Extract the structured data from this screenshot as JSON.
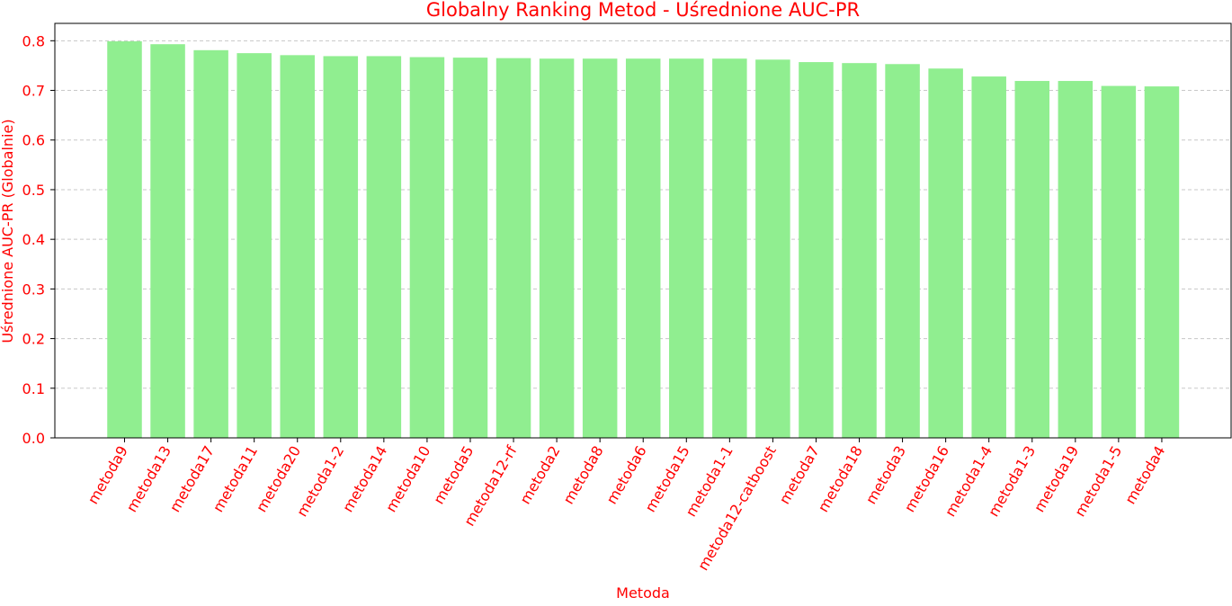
{
  "chart_data": {
    "type": "bar",
    "title": "Globalny Ranking Metod - Uśrednione AUC-PR",
    "xlabel": "Metoda",
    "ylabel": "Uśrednione AUC-PR (Globalnie)",
    "ylim": [
      0,
      0.835
    ],
    "yticks": [
      0.0,
      0.1,
      0.2,
      0.3,
      0.4,
      0.5,
      0.6,
      0.7,
      0.8
    ],
    "ytick_labels": [
      "0.0",
      "0.1",
      "0.2",
      "0.3",
      "0.4",
      "0.5",
      "0.6",
      "0.7",
      "0.8"
    ],
    "grid": "y-dashed",
    "categories": [
      "metoda9",
      "metoda13",
      "metoda17",
      "metoda11",
      "metoda20",
      "metoda1-2",
      "metoda14",
      "metoda10",
      "metoda5",
      "metoda12-rf",
      "metoda2",
      "metoda8",
      "metoda6",
      "metoda15",
      "metoda1-1",
      "metoda12-catboost",
      "metoda7",
      "metoda18",
      "metoda3",
      "metoda16",
      "metoda1-4",
      "metoda1-3",
      "metoda19",
      "metoda1-5",
      "metoda4"
    ],
    "values": [
      0.799,
      0.793,
      0.781,
      0.775,
      0.771,
      0.769,
      0.769,
      0.767,
      0.766,
      0.765,
      0.764,
      0.764,
      0.764,
      0.764,
      0.764,
      0.762,
      0.757,
      0.755,
      0.753,
      0.744,
      0.728,
      0.719,
      0.719,
      0.709,
      0.708
    ],
    "colors": {
      "bar": "#90ee90",
      "text": "#ff0000",
      "axis": "#000000",
      "grid": "#c8c8c8"
    }
  }
}
